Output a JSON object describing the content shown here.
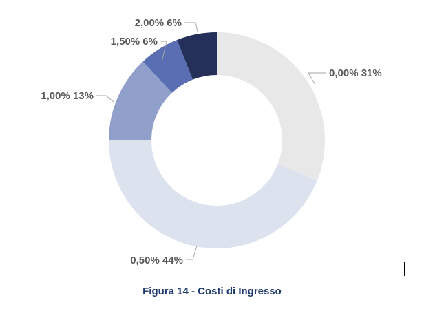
{
  "chart_data": {
    "type": "pie",
    "style": "donut",
    "title": "Figura 14 - Costi di Ingresso",
    "categories": [
      "0,00%",
      "0,50%",
      "1,00%",
      "1,50%",
      "2,00%"
    ],
    "values": [
      31,
      44,
      13,
      6,
      6
    ],
    "labels": [
      "0,00% 31%",
      "0,50% 44%",
      "1,00% 13%",
      "1,50% 6%",
      "2,00% 6%"
    ],
    "colors": [
      "#e8e8e8",
      "#dce2ee",
      "#919fcb",
      "#5a6eb4",
      "#25305a"
    ],
    "legend": "none",
    "data_labels": "outside with leader lines"
  }
}
